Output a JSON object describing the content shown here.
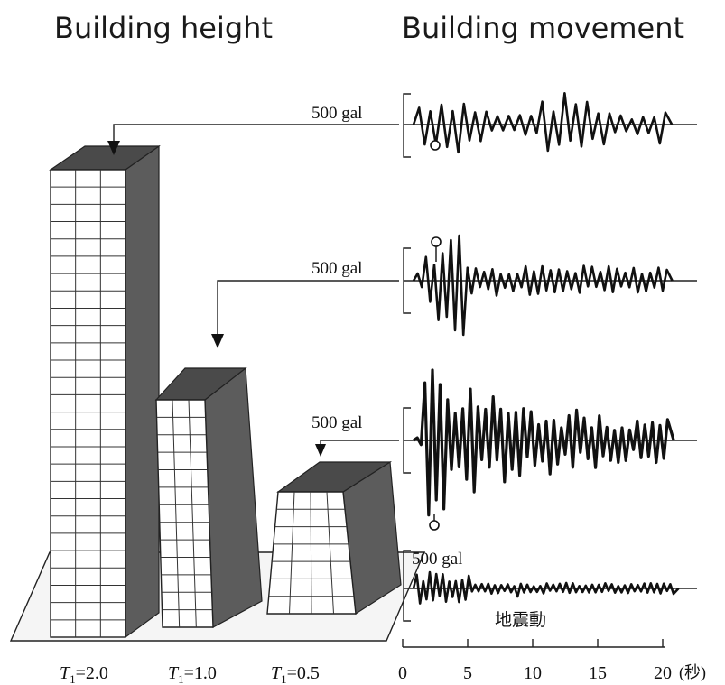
{
  "headers": {
    "left": "Building height",
    "right": "Building movement"
  },
  "buildings": [
    {
      "id": "tall",
      "period_label": "T1=2.0",
      "period_value": 2.0
    },
    {
      "id": "medium",
      "period_label": "T1=1.0",
      "period_value": 1.0
    },
    {
      "id": "short",
      "period_label": "T1=0.5",
      "period_value": 0.5
    }
  ],
  "period_symbol": "T",
  "period_subscript": "1",
  "traces": [
    {
      "id": "tall-response",
      "scale_label": "500 gal"
    },
    {
      "id": "medium-response",
      "scale_label": "500 gal"
    },
    {
      "id": "short-response",
      "scale_label": "500 gal"
    },
    {
      "id": "ground-motion",
      "scale_label": "500 gal",
      "caption": "地震動"
    }
  ],
  "time_axis": {
    "ticks": [
      "0",
      "5",
      "10",
      "15",
      "20"
    ],
    "unit": "(秒)"
  },
  "colors": {
    "ink": "#111111",
    "facade": "#ffffff",
    "shade": "#5c5c5c",
    "roof": "#4a4a4a"
  }
}
